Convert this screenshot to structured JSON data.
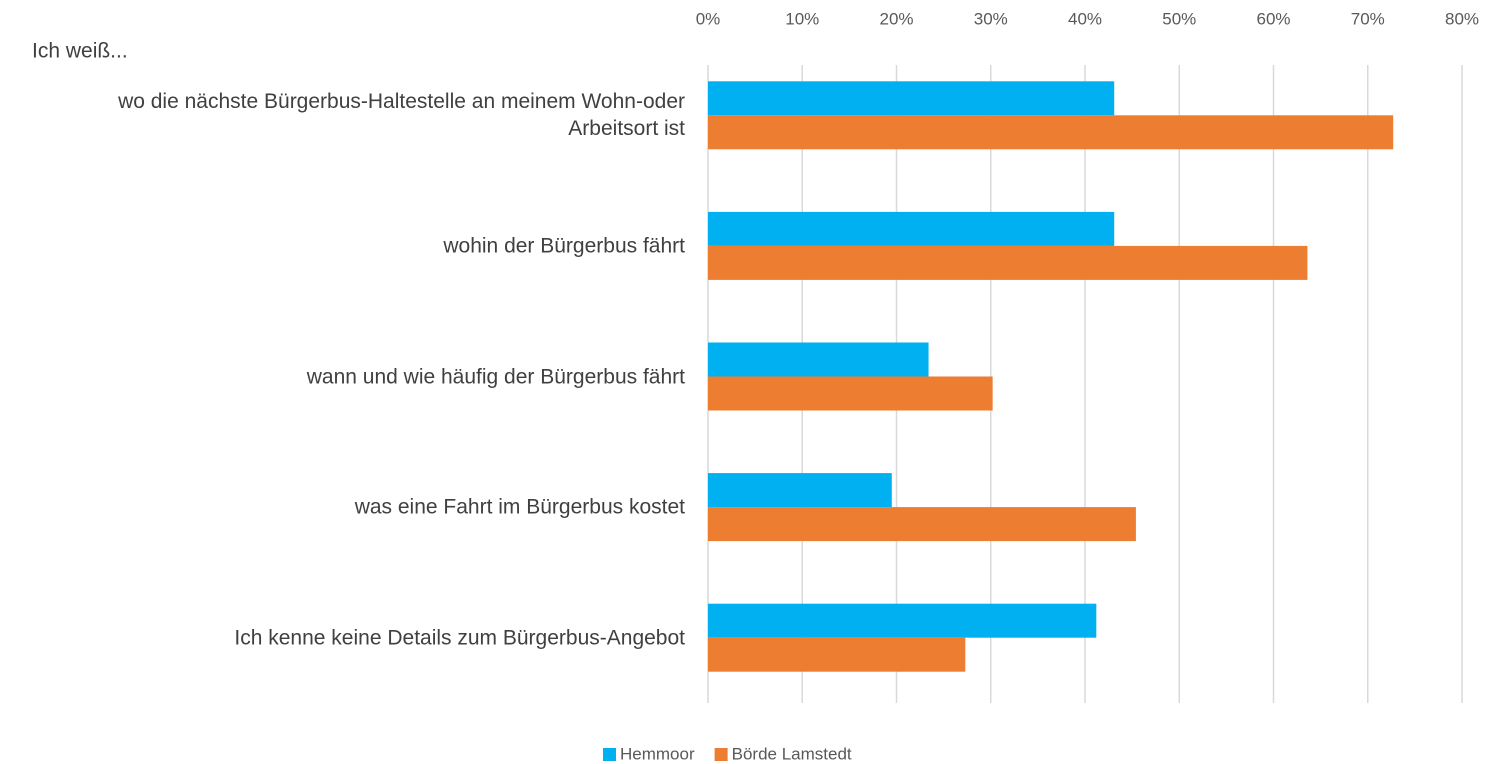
{
  "chart_data": {
    "type": "hbar",
    "y_label": "Ich weiß...",
    "categories": [
      "wo die nächste Bürgerbus-Haltestelle an meinem Wohn-oder Arbeitsort ist",
      "wohin der Bürgerbus fährt",
      "wann und wie häufig der Bürgerbus fährt",
      "was eine Fahrt im Bürgerbus kostet",
      "Ich kenne keine Details zum Bürgerbus-Angebot"
    ],
    "series": [
      {
        "name": "Hemmoor",
        "color": "#00b0f0",
        "values": [
          43.1,
          43.1,
          23.4,
          19.5,
          41.2
        ]
      },
      {
        "name": "Börde Lamstedt",
        "color": "#ed7d31",
        "values": [
          72.7,
          63.6,
          30.2,
          45.4,
          27.3
        ]
      }
    ],
    "xlim": [
      0,
      80
    ],
    "xticks": [
      {
        "value": 0,
        "label": "0%"
      },
      {
        "value": 10,
        "label": "10%"
      },
      {
        "value": 20,
        "label": "20%"
      },
      {
        "value": 30,
        "label": "30%"
      },
      {
        "value": 40,
        "label": "40%"
      },
      {
        "value": 50,
        "label": "50%"
      },
      {
        "value": 60,
        "label": "60%"
      },
      {
        "value": 70,
        "label": "70%"
      },
      {
        "value": 80,
        "label": "80%"
      }
    ],
    "grid": true,
    "legend": "bottom"
  }
}
